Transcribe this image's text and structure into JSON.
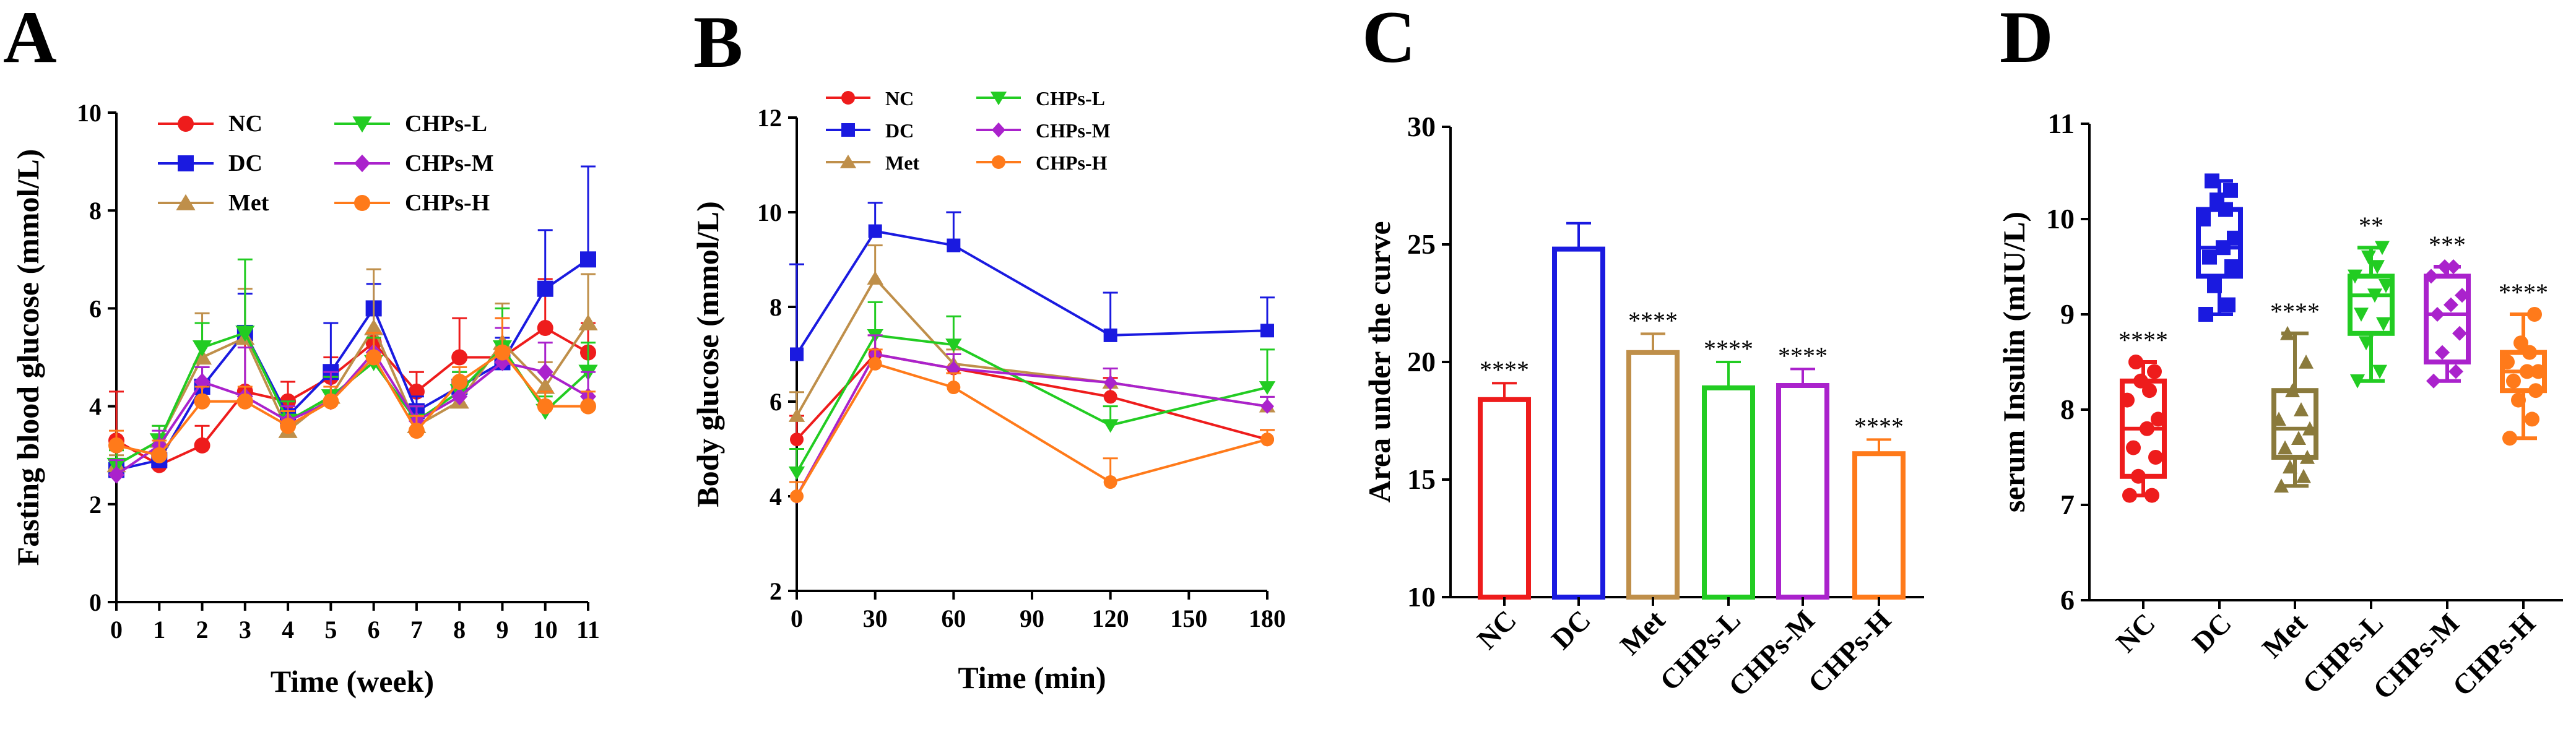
{
  "colors": {
    "NC": "#ee1c1c",
    "DC": "#1a1ae0",
    "Met": "#bf8f4a",
    "CHPs-L": "#22cc22",
    "CHPs-M": "#aa22cc",
    "CHPs-H": "#ff7a1a",
    "Met_box": "#8a7a3c"
  },
  "chart_data": [
    {
      "panel": "A",
      "type": "line",
      "xlabel": "Time (week)",
      "ylabel": "Fasting blood glucose (mmol/L)",
      "xlim": [
        0,
        11
      ],
      "ylim": [
        0,
        10
      ],
      "x_ticks": [
        "0",
        "1",
        "2",
        "3",
        "4",
        "5",
        "6",
        "7",
        "8",
        "9",
        "10",
        "11"
      ],
      "y_ticks": [
        "0",
        "2",
        "4",
        "6",
        "8",
        "10"
      ],
      "legend": [
        "NC",
        "DC",
        "Met",
        "CHPs-L",
        "CHPs-M",
        "CHPs-H"
      ],
      "x": [
        0,
        1,
        2,
        3,
        4,
        5,
        6,
        7,
        8,
        9,
        10,
        11
      ],
      "series": [
        {
          "name": "NC",
          "values": [
            3.3,
            2.8,
            3.2,
            4.3,
            4.1,
            4.6,
            5.3,
            4.3,
            5.0,
            5.0,
            5.6,
            5.1
          ],
          "errors": [
            1.0,
            0.3,
            0.4,
            1.0,
            0.4,
            0.4,
            0.6,
            0.4,
            0.8,
            0.8,
            1.0,
            0.6
          ]
        },
        {
          "name": "DC",
          "values": [
            2.7,
            2.9,
            4.4,
            5.5,
            3.8,
            4.7,
            6.0,
            3.9,
            4.4,
            4.9,
            6.4,
            7.0
          ],
          "errors": [
            0.2,
            0.3,
            0.4,
            0.8,
            0.3,
            1.0,
            0.5,
            0.3,
            0.3,
            0.5,
            1.2,
            1.9
          ]
        },
        {
          "name": "Met",
          "values": [
            2.8,
            3.3,
            5.0,
            5.4,
            3.5,
            4.2,
            5.6,
            3.6,
            4.1,
            5.3,
            4.4,
            5.7
          ],
          "errors": [
            0.2,
            0.3,
            0.9,
            1.0,
            0.3,
            0.4,
            1.2,
            0.4,
            0.4,
            0.8,
            0.5,
            1.0
          ]
        },
        {
          "name": "CHPs-L",
          "values": [
            2.8,
            3.3,
            5.2,
            5.5,
            3.7,
            4.2,
            4.9,
            3.7,
            4.3,
            5.2,
            3.9,
            4.7
          ],
          "errors": [
            0.3,
            0.3,
            0.5,
            1.5,
            0.4,
            0.4,
            0.5,
            0.3,
            0.4,
            0.8,
            0.3,
            0.6
          ]
        },
        {
          "name": "CHPs-M",
          "values": [
            2.6,
            3.2,
            4.5,
            4.2,
            3.7,
            4.1,
            5.1,
            3.7,
            4.2,
            4.9,
            4.7,
            4.2
          ],
          "errors": [
            0.3,
            0.3,
            0.3,
            1.0,
            0.3,
            0.6,
            0.4,
            0.3,
            0.3,
            0.7,
            0.6,
            0.5
          ]
        },
        {
          "name": "CHPs-H",
          "values": [
            3.2,
            3.0,
            4.1,
            4.1,
            3.6,
            4.1,
            5.0,
            3.5,
            4.5,
            5.1,
            4.0,
            4.0
          ],
          "errors": [
            0.3,
            0.3,
            0.3,
            0.3,
            0.3,
            0.3,
            0.5,
            0.3,
            0.3,
            0.7,
            0.3,
            0.3
          ]
        }
      ]
    },
    {
      "panel": "B",
      "type": "line",
      "xlabel": "Time (min)",
      "ylabel": "Body glucose (mmol/L)",
      "xlim": [
        0,
        180
      ],
      "ylim": [
        2,
        12
      ],
      "x_ticks": [
        "0",
        "30",
        "60",
        "90",
        "120",
        "150",
        "180"
      ],
      "y_ticks": [
        "2",
        "4",
        "6",
        "8",
        "10",
        "12"
      ],
      "legend": [
        "NC",
        "DC",
        "Met",
        "CHPs-L",
        "CHPs-M",
        "CHPs-H"
      ],
      "x": [
        0,
        30,
        60,
        120,
        180
      ],
      "series": [
        {
          "name": "NC",
          "values": [
            5.2,
            7.0,
            6.7,
            6.1,
            5.2
          ],
          "errors": [
            0.5,
            0.4,
            0.3,
            0.4,
            0.2
          ]
        },
        {
          "name": "DC",
          "values": [
            7.0,
            9.6,
            9.3,
            7.4,
            7.5
          ],
          "errors": [
            1.9,
            0.6,
            0.7,
            0.9,
            0.7
          ]
        },
        {
          "name": "Met",
          "values": [
            5.7,
            8.6,
            6.8,
            6.4,
            5.9
          ],
          "errors": [
            0.5,
            0.7,
            0.3,
            0.3,
            0.2
          ]
        },
        {
          "name": "CHPs-L",
          "values": [
            4.5,
            7.4,
            7.2,
            5.5,
            6.3
          ],
          "errors": [
            0.5,
            0.7,
            0.6,
            0.4,
            0.8
          ]
        },
        {
          "name": "CHPs-M",
          "values": [
            4.0,
            7.0,
            6.7,
            6.4,
            5.9
          ],
          "errors": [
            0.3,
            0.4,
            0.3,
            0.3,
            0.2
          ]
        },
        {
          "name": "CHPs-H",
          "values": [
            4.0,
            6.8,
            6.3,
            4.3,
            5.2
          ],
          "errors": [
            0.3,
            0.3,
            0.3,
            0.5,
            0.2
          ]
        }
      ]
    },
    {
      "panel": "C",
      "type": "bar",
      "ylabel": "Area under the curve",
      "ylim": [
        10,
        30
      ],
      "y_ticks": [
        "10",
        "15",
        "20",
        "25",
        "30"
      ],
      "categories": [
        "NC",
        "DC",
        "Met",
        "CHPs-L",
        "CHPs-M",
        "CHPs-H"
      ],
      "values": [
        18.4,
        24.8,
        20.4,
        18.9,
        19.0,
        16.1
      ],
      "errors": [
        0.7,
        1.1,
        0.8,
        1.1,
        0.7,
        0.6
      ],
      "significance": [
        "****",
        "",
        "****",
        "****",
        "****",
        "****"
      ]
    },
    {
      "panel": "D",
      "type": "box",
      "ylabel": "serum Insulin (mIU/L)",
      "ylim": [
        6,
        11
      ],
      "y_ticks": [
        "6",
        "7",
        "8",
        "9",
        "10",
        "11"
      ],
      "categories": [
        "NC",
        "DC",
        "Met",
        "CHPs-L",
        "CHPs-M",
        "CHPs-H"
      ],
      "boxes": [
        {
          "name": "NC",
          "min": 7.1,
          "q1": 7.3,
          "median": 7.8,
          "q3": 8.3,
          "max": 8.5,
          "points": [
            7.1,
            7.1,
            7.3,
            7.5,
            7.6,
            7.8,
            7.9,
            8.1,
            8.2,
            8.3,
            8.4,
            8.5
          ]
        },
        {
          "name": "DC",
          "min": 9.0,
          "q1": 9.4,
          "median": 9.7,
          "q3": 10.1,
          "max": 10.4,
          "points": [
            9.0,
            9.1,
            9.3,
            9.5,
            9.6,
            9.7,
            9.8,
            10.0,
            10.1,
            10.2,
            10.3,
            10.4
          ]
        },
        {
          "name": "Met",
          "min": 7.2,
          "q1": 7.5,
          "median": 7.8,
          "q3": 8.2,
          "max": 8.8,
          "points": [
            7.2,
            7.3,
            7.4,
            7.5,
            7.6,
            7.7,
            7.8,
            7.9,
            8.0,
            8.2,
            8.5,
            8.8
          ]
        },
        {
          "name": "CHPs-L",
          "min": 8.3,
          "q1": 8.8,
          "median": 9.2,
          "q3": 9.4,
          "max": 9.7,
          "points": [
            8.3,
            8.4,
            8.7,
            8.9,
            9.0,
            9.2,
            9.3,
            9.4,
            9.5,
            9.6,
            9.7
          ]
        },
        {
          "name": "CHPs-M",
          "min": 8.3,
          "q1": 8.5,
          "median": 9.0,
          "q3": 9.4,
          "max": 9.5,
          "points": [
            8.3,
            8.4,
            8.6,
            8.8,
            9.0,
            9.1,
            9.2,
            9.4,
            9.5,
            9.5
          ]
        },
        {
          "name": "CHPs-H",
          "min": 7.7,
          "q1": 8.2,
          "median": 8.4,
          "q3": 8.6,
          "max": 9.0,
          "points": [
            7.7,
            7.9,
            8.1,
            8.2,
            8.3,
            8.4,
            8.4,
            8.5,
            8.6,
            8.7,
            9.0
          ]
        }
      ],
      "significance": [
        "****",
        "",
        "****",
        "**",
        "***",
        "****"
      ]
    }
  ],
  "panel_letters": [
    "A",
    "B",
    "C",
    "D"
  ]
}
